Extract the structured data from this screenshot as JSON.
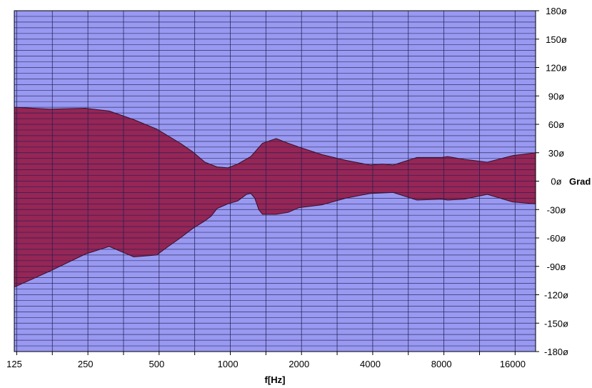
{
  "chart_data": {
    "type": "area",
    "title": "",
    "xlabel": "f[Hz]",
    "ylabel": "Grad",
    "x_scale": "log2",
    "xlim": [
      125,
      20000
    ],
    "ylim": [
      -180,
      180
    ],
    "x_tick_labels": [
      "125",
      "250",
      "500",
      "1000",
      "2000",
      "4000",
      "8000",
      "16000"
    ],
    "x_tick_values": [
      125,
      250,
      500,
      1000,
      2000,
      4000,
      8000,
      16000
    ],
    "y_tick_values": [
      180,
      150,
      120,
      90,
      60,
      30,
      0,
      -30,
      -60,
      -90,
      -120,
      -150,
      -180
    ],
    "y_tick_labels": [
      "180ø",
      "150ø",
      "120ø",
      "90ø",
      "60ø",
      "30ø",
      "0ø",
      "-30ø",
      "-60ø",
      "-90ø",
      "-120ø",
      "-150ø",
      "-180ø"
    ],
    "grid": true,
    "legend": "none",
    "colors": {
      "background": "#9999f2",
      "band_fill": "#952656",
      "grid_line": "#1e1e50"
    },
    "series": [
      {
        "upper": {
          "x": [
            125,
            177,
            250,
            315,
            400,
            500,
            630,
            710,
            800,
            900,
            1000,
            1100,
            1250,
            1400,
            1600,
            1800,
            2000,
            2500,
            3150,
            4000,
            4500,
            5000,
            6300,
            8000,
            8500,
            10000,
            12500,
            16000,
            20000
          ],
          "y": [
            78,
            76,
            77,
            74,
            65,
            55,
            40,
            31,
            20,
            15,
            14,
            18,
            26,
            40,
            45,
            40,
            36,
            28,
            22,
            17,
            18,
            17,
            25,
            25,
            26,
            23,
            20,
            27,
            30
          ]
        },
        "lower": {
          "x": [
            125,
            177,
            250,
            315,
            400,
            500,
            560,
            630,
            710,
            800,
            850,
            900,
            1000,
            1100,
            1200,
            1250,
            1300,
            1350,
            1400,
            1600,
            1800,
            2000,
            2500,
            3150,
            4000,
            5000,
            6300,
            8000,
            8500,
            10000,
            12500,
            16000,
            20000
          ],
          "y": [
            -112,
            -95,
            -77,
            -69,
            -80,
            -78,
            -69,
            -60,
            -50,
            -42,
            -37,
            -29,
            -24,
            -21,
            -14,
            -13,
            -18,
            -30,
            -35,
            -35,
            -33,
            -28,
            -25,
            -18,
            -13,
            -12,
            -20,
            -19,
            -20,
            -19,
            -14,
            -22,
            -24
          ]
        }
      }
    ]
  }
}
